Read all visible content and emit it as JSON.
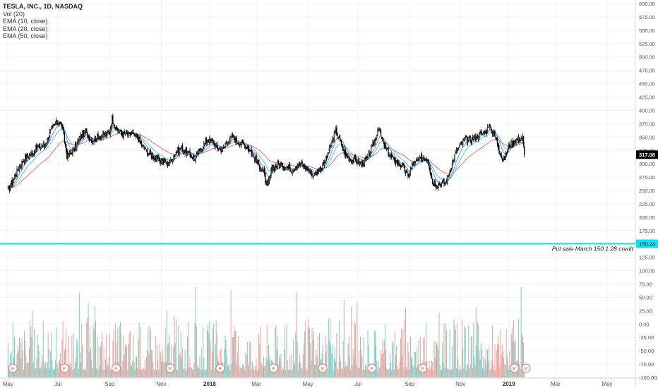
{
  "legend": {
    "title": "TESLA, INC., 1D, NASDAQ",
    "lines": [
      "Vol (20)",
      "EMA (10, close)",
      "EMA (20, close)",
      "EMA (50, close)"
    ]
  },
  "annotation": "Put sale March 150 1.28 credit",
  "colors": {
    "candle": "#000000",
    "vol_up": "#75c9c0",
    "vol_down": "#f29a94",
    "ema10": "#2962ff",
    "ema20": "#00bcd4",
    "ema50": "#e53935",
    "hline": "#00e5ff",
    "grid": "#f0f3fa",
    "axis": "#555555"
  },
  "price_badge": "317.08",
  "hline_badge": "150.24",
  "earnings_marker": "E",
  "chart_data": {
    "type": "candlestick",
    "symbol": "TESLA, INC., 1D, NASDAQ",
    "y_ticks": [
      600,
      575,
      550,
      525,
      500,
      475,
      450,
      425,
      400,
      375,
      350,
      325,
      300,
      275,
      250,
      225,
      200,
      175,
      150,
      125,
      100,
      75,
      50,
      25,
      0,
      -25,
      -50,
      -75,
      -100
    ],
    "y_tick_labels": [
      "600.00",
      "575.00",
      "550.00",
      "525.00",
      "500.00",
      "475.00",
      "450.00",
      "425.00",
      "400.00",
      "375.00",
      "350.00",
      "325.00",
      "300.00",
      "275.00",
      "250.00",
      "225.00",
      "200.00",
      "175.00",
      "150.00",
      "125.00",
      "100.00",
      "75.00",
      "50.00",
      "25.00",
      "0.00",
      "-25.00",
      "-50.00",
      "-75.00",
      "-100.00"
    ],
    "ylim": [
      -100,
      600
    ],
    "last_price": 317.08,
    "horizontal_line": 150.24,
    "x_ticks": [
      {
        "label": "May",
        "x": 0
      },
      {
        "label": "Jul",
        "x": 61
      },
      {
        "label": "Sep",
        "x": 124
      },
      {
        "label": "Nov",
        "x": 187
      },
      {
        "label": "2018",
        "x": 246,
        "bold": true
      },
      {
        "label": "Mar",
        "x": 303
      },
      {
        "label": "May",
        "x": 366
      },
      {
        "label": "Jul",
        "x": 427
      },
      {
        "label": "Sep",
        "x": 490
      },
      {
        "label": "Nov",
        "x": 552
      },
      {
        "label": "2019",
        "x": 611,
        "bold": true
      },
      {
        "label": "Mar",
        "x": 668
      },
      {
        "label": "May",
        "x": 731
      }
    ],
    "x_range": [
      -8,
      762
    ],
    "earnings_days": [
      6,
      69,
      132,
      198,
      259,
      324,
      384,
      444,
      506,
      618
    ],
    "price_path": [
      [
        0,
        250
      ],
      [
        5,
        265
      ],
      [
        12,
        290
      ],
      [
        20,
        310
      ],
      [
        28,
        318
      ],
      [
        35,
        330
      ],
      [
        45,
        335
      ],
      [
        52,
        360
      ],
      [
        58,
        375
      ],
      [
        62,
        380
      ],
      [
        66,
        370
      ],
      [
        72,
        315
      ],
      [
        80,
        325
      ],
      [
        88,
        350
      ],
      [
        95,
        360
      ],
      [
        102,
        345
      ],
      [
        110,
        350
      ],
      [
        118,
        355
      ],
      [
        124,
        360
      ],
      [
        127,
        385
      ],
      [
        132,
        365
      ],
      [
        140,
        355
      ],
      [
        150,
        355
      ],
      [
        158,
        350
      ],
      [
        165,
        330
      ],
      [
        172,
        320
      ],
      [
        180,
        310
      ],
      [
        188,
        305
      ],
      [
        196,
        300
      ],
      [
        204,
        320
      ],
      [
        212,
        330
      ],
      [
        220,
        318
      ],
      [
        228,
        310
      ],
      [
        236,
        330
      ],
      [
        244,
        345
      ],
      [
        250,
        340
      ],
      [
        256,
        330
      ],
      [
        262,
        325
      ],
      [
        268,
        345
      ],
      [
        274,
        350
      ],
      [
        282,
        340
      ],
      [
        290,
        335
      ],
      [
        298,
        320
      ],
      [
        305,
        300
      ],
      [
        312,
        285
      ],
      [
        316,
        255
      ],
      [
        322,
        290
      ],
      [
        330,
        300
      ],
      [
        338,
        295
      ],
      [
        346,
        290
      ],
      [
        354,
        300
      ],
      [
        362,
        295
      ],
      [
        368,
        285
      ],
      [
        374,
        280
      ],
      [
        380,
        290
      ],
      [
        386,
        300
      ],
      [
        392,
        325
      ],
      [
        396,
        345
      ],
      [
        400,
        362
      ],
      [
        406,
        340
      ],
      [
        412,
        315
      ],
      [
        418,
        308
      ],
      [
        425,
        305
      ],
      [
        432,
        300
      ],
      [
        438,
        310
      ],
      [
        444,
        330
      ],
      [
        448,
        345
      ],
      [
        452,
        370
      ],
      [
        456,
        345
      ],
      [
        462,
        325
      ],
      [
        470,
        308
      ],
      [
        476,
        300
      ],
      [
        482,
        295
      ],
      [
        488,
        275
      ],
      [
        494,
        300
      ],
      [
        500,
        305
      ],
      [
        506,
        312
      ],
      [
        512,
        310
      ],
      [
        518,
        265
      ],
      [
        522,
        262
      ],
      [
        528,
        263
      ],
      [
        534,
        265
      ],
      [
        540,
        290
      ],
      [
        546,
        320
      ],
      [
        552,
        335
      ],
      [
        558,
        345
      ],
      [
        564,
        345
      ],
      [
        570,
        350
      ],
      [
        576,
        355
      ],
      [
        582,
        360
      ],
      [
        588,
        370
      ],
      [
        594,
        352
      ],
      [
        600,
        325
      ],
      [
        604,
        305
      ],
      [
        608,
        318
      ],
      [
        612,
        335
      ],
      [
        616,
        340
      ],
      [
        620,
        345
      ],
      [
        624,
        348
      ],
      [
        628,
        348
      ],
      [
        630,
        317
      ]
    ],
    "volume_seed": 17
  }
}
